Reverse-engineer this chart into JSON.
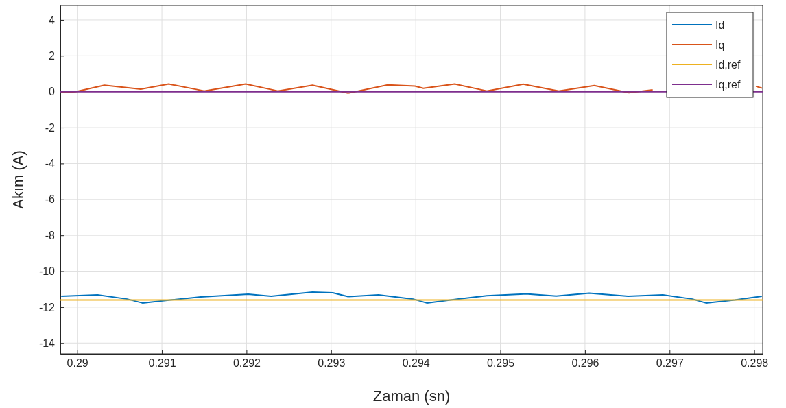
{
  "chart_data": {
    "type": "line",
    "xlabel": "Zaman (sn)",
    "ylabel": "Akım (A)",
    "xlim": [
      0.2898,
      0.2981
    ],
    "xticks": [
      0.29,
      0.291,
      0.292,
      0.293,
      0.294,
      0.295,
      0.296,
      0.297,
      0.298
    ],
    "ylim": [
      -14.6,
      4.8
    ],
    "yticks": [
      -14,
      -12,
      -10,
      -8,
      -6,
      -4,
      -2,
      0,
      2,
      4
    ],
    "grid": true,
    "legend": "top right",
    "marker": "none",
    "line_style": "solid",
    "series": [
      {
        "name": "Id",
        "color": "#0072bd",
        "x": [
          0.28981,
          0.29024,
          0.29059,
          0.29077,
          0.2911,
          0.29146,
          0.29202,
          0.29229,
          0.29278,
          0.29302,
          0.2932,
          0.29356,
          0.29397,
          0.29413,
          0.29449,
          0.29484,
          0.2953,
          0.29566,
          0.29605,
          0.29651,
          0.29692,
          0.29727,
          0.29743,
          0.29777,
          0.29809
        ],
        "values": [
          -11.39,
          -11.32,
          -11.55,
          -11.77,
          -11.6,
          -11.43,
          -11.28,
          -11.39,
          -11.16,
          -11.2,
          -11.41,
          -11.32,
          -11.55,
          -11.77,
          -11.55,
          -11.36,
          -11.26,
          -11.38,
          -11.22,
          -11.39,
          -11.32,
          -11.55,
          -11.77,
          -11.6,
          -11.39
        ]
      },
      {
        "name": "Iq",
        "color": "#d95319",
        "x": [
          0.28981,
          0.28998,
          0.29032,
          0.29075,
          0.29108,
          0.2915,
          0.29199,
          0.29237,
          0.29278,
          0.2932,
          0.29367,
          0.29399,
          0.29409,
          0.29446,
          0.29484,
          0.29527,
          0.29569,
          0.29611,
          0.29652,
          0.2968,
          0.29718,
          0.29802,
          0.29809
        ],
        "values": [
          -0.05,
          0,
          0.36,
          0.14,
          0.43,
          0.04,
          0.43,
          0.04,
          0.36,
          -0.08,
          0.38,
          0.31,
          0.19,
          0.43,
          0.04,
          0.42,
          0.04,
          0.34,
          -0.06,
          0.1,
          null,
          0.3,
          0.2
        ]
      },
      {
        "name": "Id,ref",
        "color": "#edb120",
        "x": [
          0.2898,
          0.2981
        ],
        "values": [
          -11.6,
          -11.6
        ]
      },
      {
        "name": "Iq,ref",
        "color": "#7e2f8e",
        "x": [
          0.2898,
          0.2981
        ],
        "values": [
          0,
          0
        ]
      }
    ]
  }
}
